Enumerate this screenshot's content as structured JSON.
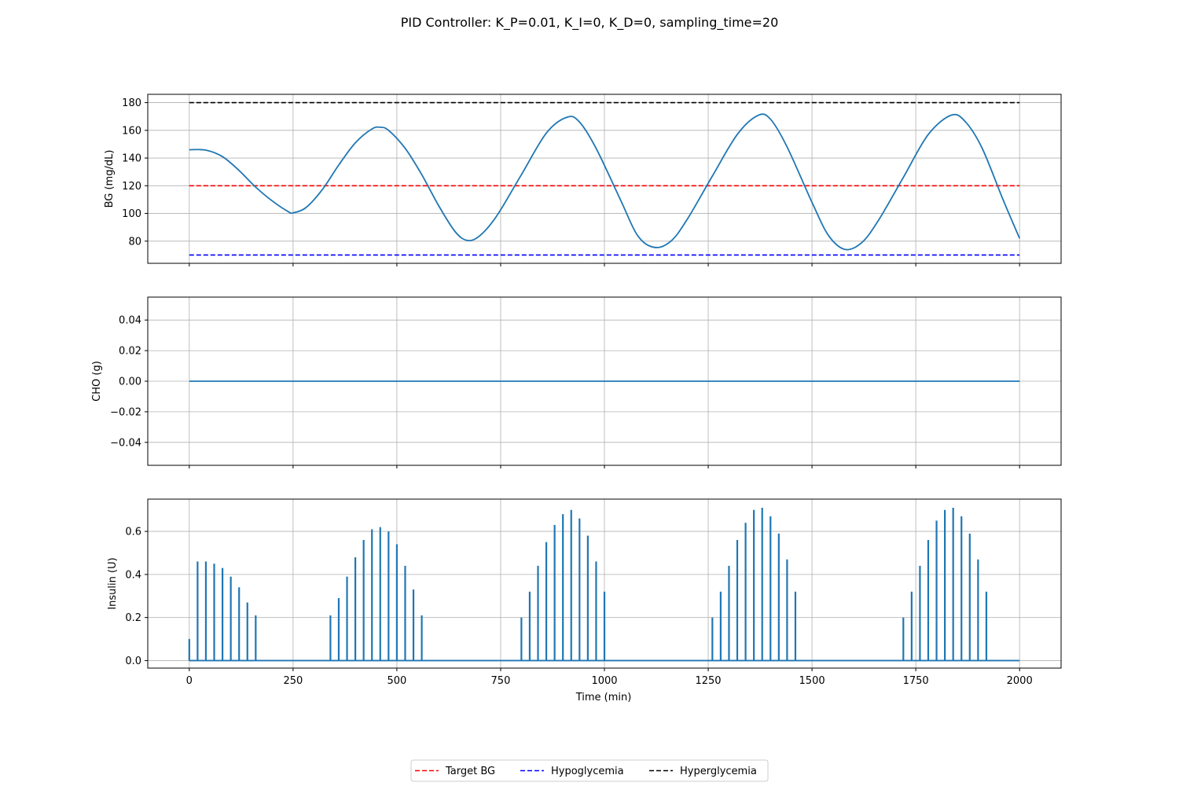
{
  "chart_data": {
    "title": "PID Controller: K_P=0.01, K_I=0, K_D=0, sampling_time=20",
    "type": "line",
    "shared_x": {
      "label": "Time (min)",
      "range": [
        -100,
        2100
      ],
      "ticks": [
        0,
        250,
        500,
        750,
        1000,
        1250,
        1500,
        1750,
        2000
      ]
    },
    "grid": true,
    "legend": {
      "placement": "bottom-center",
      "entries": [
        {
          "label": "Target BG",
          "color": "#ff0000",
          "style": "dashed"
        },
        {
          "label": "Hypoglycemia",
          "color": "#0000ff",
          "style": "dashed"
        },
        {
          "label": "Hyperglycemia",
          "color": "#000000",
          "style": "dashed"
        }
      ]
    },
    "panels": [
      {
        "name": "bg",
        "ylabel": "BG (mg/dL)",
        "ylim": [
          64,
          186
        ],
        "yticks": [
          80,
          100,
          120,
          140,
          160,
          180
        ],
        "series": {
          "color": "#1f77b4",
          "points": [
            [
              0,
              146
            ],
            [
              40,
              145.7
            ],
            [
              80,
              141
            ],
            [
              120,
              131
            ],
            [
              160,
              119
            ],
            [
              200,
              109
            ],
            [
              240,
              101
            ],
            [
              250,
              100.5
            ],
            [
              280,
              104
            ],
            [
              320,
              117
            ],
            [
              360,
              135
            ],
            [
              400,
              151
            ],
            [
              440,
              161
            ],
            [
              460,
              162.2
            ],
            [
              480,
              160
            ],
            [
              520,
              147
            ],
            [
              560,
              128
            ],
            [
              600,
              106
            ],
            [
              640,
              87
            ],
            [
              670,
              80.5
            ],
            [
              700,
              84
            ],
            [
              740,
              98
            ],
            [
              800,
              128
            ],
            [
              860,
              158
            ],
            [
              910,
              169.5
            ],
            [
              940,
              166
            ],
            [
              980,
              147
            ],
            [
              1040,
              109
            ],
            [
              1080,
              84
            ],
            [
              1120,
              75.5
            ],
            [
              1160,
              80
            ],
            [
              1200,
              96
            ],
            [
              1260,
              127
            ],
            [
              1320,
              157
            ],
            [
              1370,
              170.8
            ],
            [
              1400,
              168
            ],
            [
              1440,
              148
            ],
            [
              1500,
              108
            ],
            [
              1540,
              84
            ],
            [
              1580,
              74
            ],
            [
              1620,
              79
            ],
            [
              1660,
              95
            ],
            [
              1720,
              126
            ],
            [
              1780,
              157
            ],
            [
              1836,
              171
            ],
            [
              1870,
              166
            ],
            [
              1910,
              147
            ],
            [
              1960,
              110
            ],
            [
              2000,
              82
            ]
          ]
        },
        "reference_lines": [
          {
            "label": "Target BG",
            "y": 120,
            "color": "#ff0000"
          },
          {
            "label": "Hypoglycemia",
            "y": 70,
            "color": "#0000ff"
          },
          {
            "label": "Hyperglycemia",
            "y": 180,
            "color": "#000000"
          }
        ]
      },
      {
        "name": "cho",
        "ylabel": "CHO (g)",
        "ylim": [
          -0.055,
          0.055
        ],
        "yticks": [
          -0.04,
          -0.02,
          0.0,
          0.02,
          0.04
        ],
        "ytick_labels": [
          "−0.04",
          "−0.02",
          "0.00",
          "0.02",
          "0.04"
        ],
        "series": {
          "color": "#1f77b4",
          "points": [
            [
              0,
              0
            ],
            [
              2000,
              0
            ]
          ]
        }
      },
      {
        "name": "insulin",
        "ylabel": "Insulin (U)",
        "ylim": [
          -0.035,
          0.75
        ],
        "yticks": [
          0.0,
          0.2,
          0.4,
          0.6
        ],
        "ytick_labels": [
          "0.0",
          "0.2",
          "0.4",
          "0.6"
        ],
        "series": {
          "color": "#1f77b4",
          "spikes": [
            [
              0,
              0.1
            ],
            [
              20,
              0.46
            ],
            [
              40,
              0.46
            ],
            [
              60,
              0.45
            ],
            [
              80,
              0.43
            ],
            [
              100,
              0.39
            ],
            [
              120,
              0.34
            ],
            [
              140,
              0.27
            ],
            [
              160,
              0.21
            ],
            [
              340,
              0.21
            ],
            [
              360,
              0.29
            ],
            [
              380,
              0.39
            ],
            [
              400,
              0.48
            ],
            [
              420,
              0.56
            ],
            [
              440,
              0.61
            ],
            [
              460,
              0.62
            ],
            [
              480,
              0.6
            ],
            [
              500,
              0.54
            ],
            [
              520,
              0.44
            ],
            [
              540,
              0.33
            ],
            [
              560,
              0.21
            ],
            [
              800,
              0.2
            ],
            [
              820,
              0.32
            ],
            [
              840,
              0.44
            ],
            [
              860,
              0.55
            ],
            [
              880,
              0.63
            ],
            [
              900,
              0.68
            ],
            [
              920,
              0.7
            ],
            [
              940,
              0.66
            ],
            [
              960,
              0.58
            ],
            [
              980,
              0.46
            ],
            [
              1000,
              0.32
            ],
            [
              1260,
              0.2
            ],
            [
              1280,
              0.32
            ],
            [
              1300,
              0.44
            ],
            [
              1320,
              0.56
            ],
            [
              1340,
              0.64
            ],
            [
              1360,
              0.7
            ],
            [
              1380,
              0.71
            ],
            [
              1400,
              0.67
            ],
            [
              1420,
              0.59
            ],
            [
              1440,
              0.47
            ],
            [
              1460,
              0.32
            ],
            [
              1720,
              0.2
            ],
            [
              1740,
              0.32
            ],
            [
              1760,
              0.44
            ],
            [
              1780,
              0.56
            ],
            [
              1800,
              0.65
            ],
            [
              1820,
              0.7
            ],
            [
              1840,
              0.71
            ],
            [
              1860,
              0.67
            ],
            [
              1880,
              0.59
            ],
            [
              1900,
              0.47
            ],
            [
              1920,
              0.32
            ]
          ]
        }
      }
    ]
  }
}
